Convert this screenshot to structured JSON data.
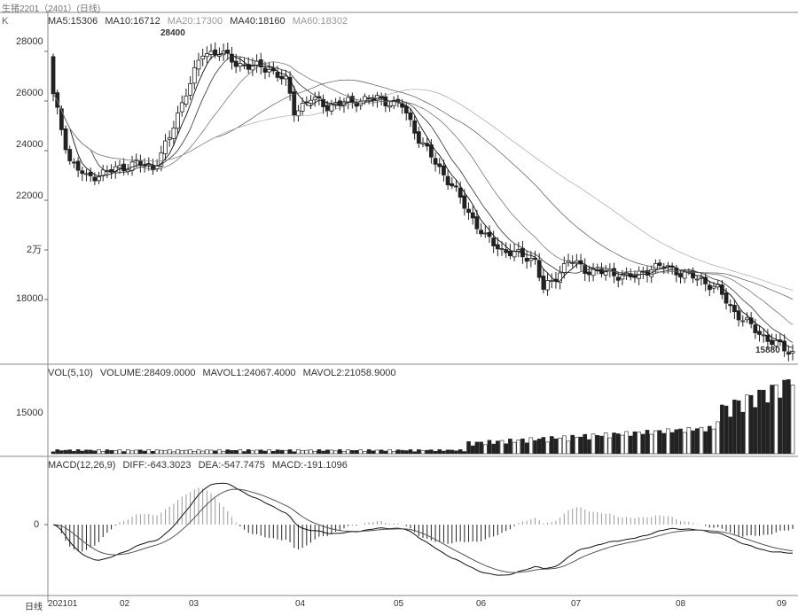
{
  "header": {
    "title": "生猪2201（2401）(日线)",
    "ma5": "MA5:15306",
    "ma10": "MA10:16712",
    "ma20": "MA20:17300",
    "ma40": "MA40:18160",
    "ma60": "MA60:18302",
    "k_label": "K"
  },
  "volume_header": {
    "label": "VOL(5,10)",
    "volume": "VOLUME:28409.0000",
    "mavol1": "MAVOL1:24067.4000",
    "mavol2": "MAVOL2:21058.9000"
  },
  "macd_header": {
    "label": "MACD(12,26,9)",
    "diff": "DIFF:-643.3023",
    "dea": "DEA:-547.7475",
    "macd": "MACD:-191.1096"
  },
  "price_axis": [
    "28000",
    "26000",
    "24000",
    "22000",
    "2万",
    "18000"
  ],
  "volume_axis": [
    "15000"
  ],
  "macd_axis": [
    "0"
  ],
  "annotations": {
    "high": "28400",
    "low": "15880"
  },
  "x_axis": {
    "period": "日线",
    "labels": [
      "202101",
      "02",
      "03",
      "04",
      "05",
      "06",
      "07",
      "08",
      "09"
    ]
  },
  "chart_data": {
    "type": "candlestick",
    "title": "生猪2201（2401）(日线)",
    "ylim": [
      15500,
      29000
    ],
    "price_ticks": [
      28000,
      26000,
      24000,
      22000,
      20000,
      18000
    ],
    "months": [
      "202101",
      "02",
      "03",
      "04",
      "05",
      "06",
      "07",
      "08",
      "09"
    ],
    "anchors": [
      [
        0,
        26200
      ],
      [
        4,
        23600
      ],
      [
        8,
        22900
      ],
      [
        14,
        23200
      ],
      [
        20,
        23500
      ],
      [
        24,
        23300
      ],
      [
        28,
        24500
      ],
      [
        32,
        26400
      ],
      [
        36,
        27900
      ],
      [
        40,
        28000
      ],
      [
        44,
        27500
      ],
      [
        48,
        27400
      ],
      [
        52,
        27300
      ],
      [
        56,
        26800
      ],
      [
        58,
        25600
      ],
      [
        62,
        26100
      ],
      [
        66,
        25800
      ],
      [
        72,
        26000
      ],
      [
        78,
        26100
      ],
      [
        84,
        25800
      ],
      [
        88,
        24500
      ],
      [
        92,
        23500
      ],
      [
        96,
        22600
      ],
      [
        100,
        21500
      ],
      [
        104,
        20500
      ],
      [
        108,
        20000
      ],
      [
        112,
        19800
      ],
      [
        116,
        19600
      ],
      [
        118,
        18400
      ],
      [
        120,
        18700
      ],
      [
        124,
        19600
      ],
      [
        128,
        19200
      ],
      [
        132,
        19100
      ],
      [
        136,
        19000
      ],
      [
        140,
        18900
      ],
      [
        144,
        19300
      ],
      [
        148,
        19300
      ],
      [
        152,
        19000
      ],
      [
        156,
        18800
      ],
      [
        160,
        18400
      ],
      [
        164,
        17500
      ],
      [
        168,
        16900
      ],
      [
        172,
        16400
      ],
      [
        176,
        16000
      ],
      [
        178,
        15880
      ]
    ],
    "volume": {
      "ylim": [
        0,
        30000
      ],
      "ticks": [
        15000
      ],
      "last": 28409
    },
    "macd": {
      "diff_last": -643.3023,
      "dea_last": -547.7475,
      "macd_last": -191.1096
    }
  }
}
